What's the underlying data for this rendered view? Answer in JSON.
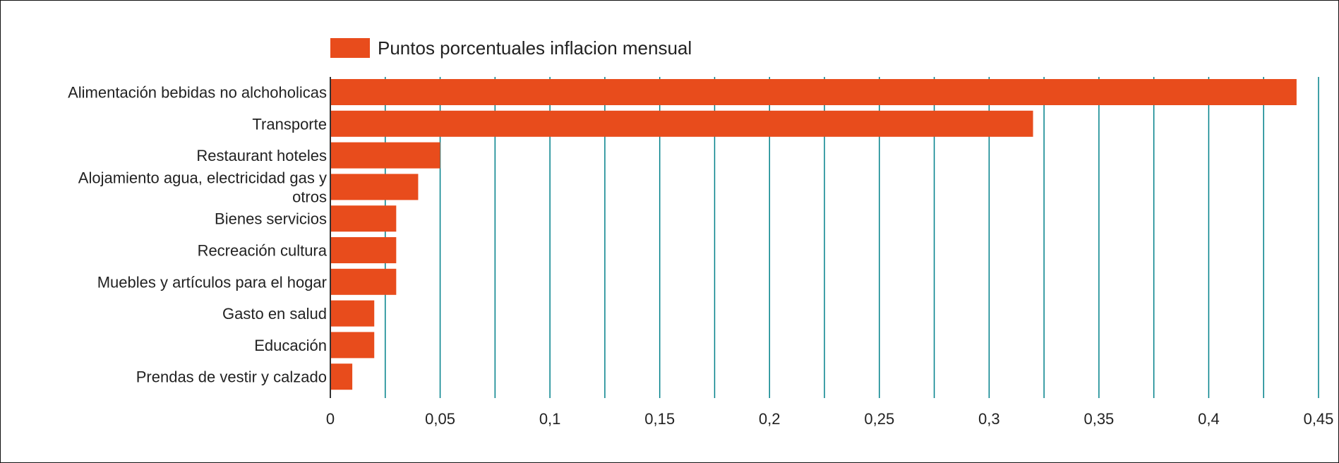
{
  "chart_data": {
    "type": "bar",
    "orientation": "horizontal",
    "categories": [
      [
        "Alimentación bebidas no alchoholicas"
      ],
      [
        "Transporte"
      ],
      [
        "Restaurant hoteles"
      ],
      [
        "Alojamiento agua, electricidad gas y",
        "otros"
      ],
      [
        "Bienes servicios"
      ],
      [
        "Recreación cultura"
      ],
      [
        "Muebles y artículos para el hogar"
      ],
      [
        "Gasto en salud"
      ],
      [
        "Educación"
      ],
      [
        "Prendas de vestir y calzado"
      ]
    ],
    "series": [
      {
        "name": "Puntos porcentuales inflacion mensual",
        "color": "#e84c1c",
        "values": [
          0.44,
          0.32,
          0.05,
          0.04,
          0.03,
          0.03,
          0.03,
          0.02,
          0.02,
          0.01
        ]
      }
    ],
    "xlim": [
      0,
      0.45
    ],
    "x_ticks": [
      0,
      0.05,
      0.1,
      0.15,
      0.2,
      0.25,
      0.3,
      0.35,
      0.4,
      0.45
    ],
    "x_tick_labels": [
      "0",
      "0,05",
      "0,1",
      "0,15",
      "0,2",
      "0,25",
      "0,3",
      "0,35",
      "0,4",
      "0,45"
    ],
    "minor_grid_step": 0.025,
    "grid": true,
    "grid_color": "#00808a",
    "legend_position": "top",
    "title": "",
    "xlabel": "",
    "ylabel": ""
  }
}
